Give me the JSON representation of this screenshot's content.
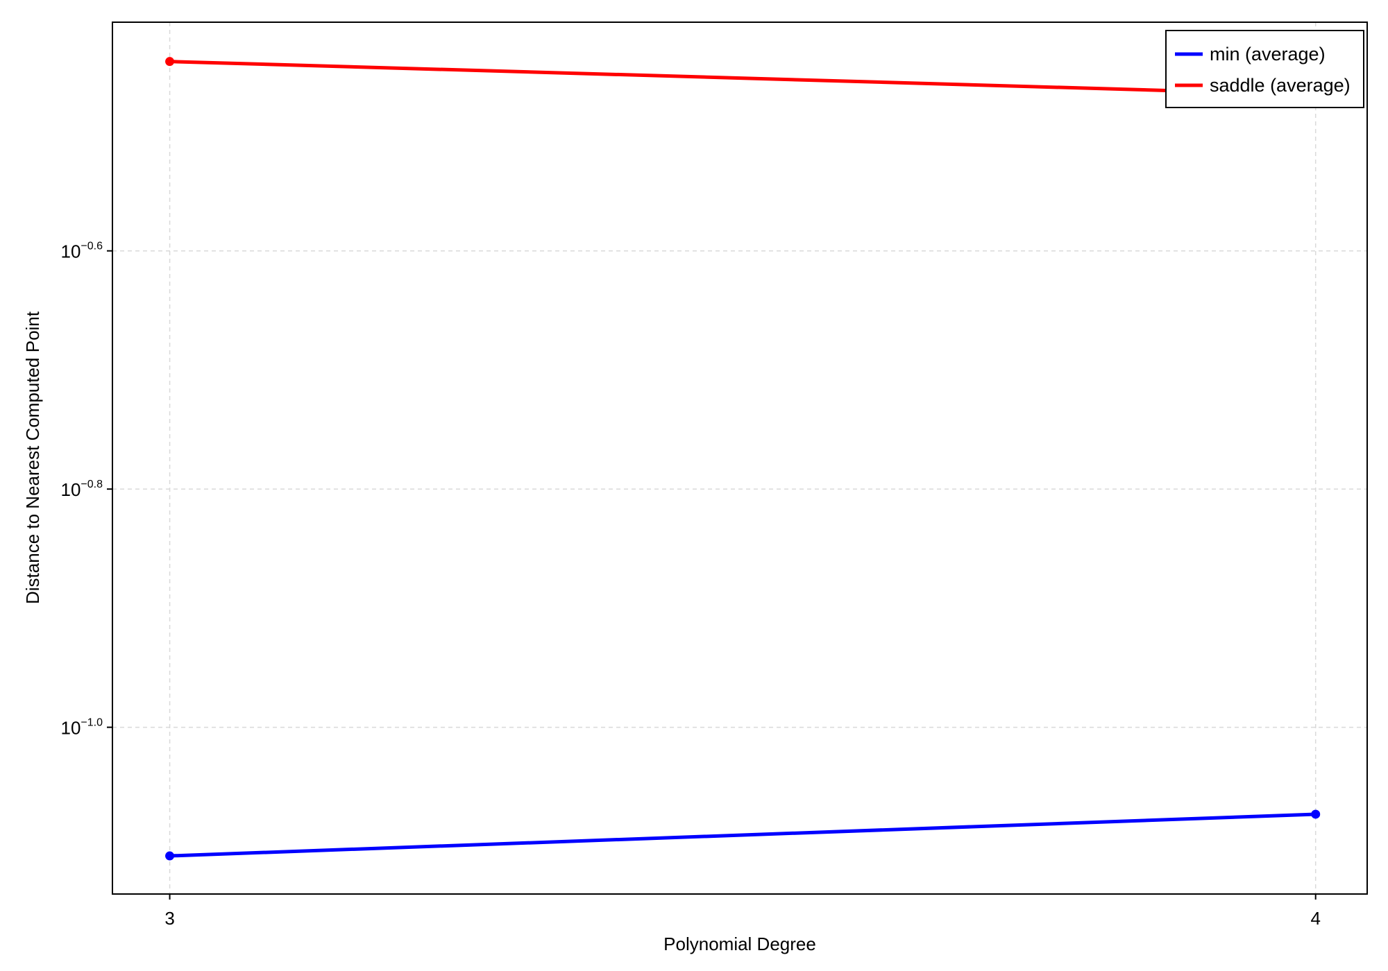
{
  "chart_data": {
    "type": "line",
    "title": "",
    "xlabel": "Polynomial Degree",
    "ylabel": "Distance to Nearest Computed Point",
    "yscale": "log10",
    "x": [
      3,
      4
    ],
    "xticks": [
      "3",
      "4"
    ],
    "yticks": [
      {
        "base": "10",
        "exponent": "−0.6",
        "value": -0.6
      },
      {
        "base": "10",
        "exponent": "−0.8",
        "value": -0.8
      },
      {
        "base": "10",
        "exponent": "−1.0",
        "value": -1.0
      }
    ],
    "xlim": [
      2.95,
      4.045
    ],
    "ylim_log10": [
      -1.14,
      -0.408
    ],
    "grid": true,
    "legend_position": "top-right",
    "series": [
      {
        "name": "min (average)",
        "color": "#0000ff",
        "log10_values": [
          -1.108,
          -1.073
        ]
      },
      {
        "name": "saddle (average)",
        "color": "#ff0000",
        "log10_values": [
          -0.441,
          -0.469
        ]
      }
    ]
  }
}
